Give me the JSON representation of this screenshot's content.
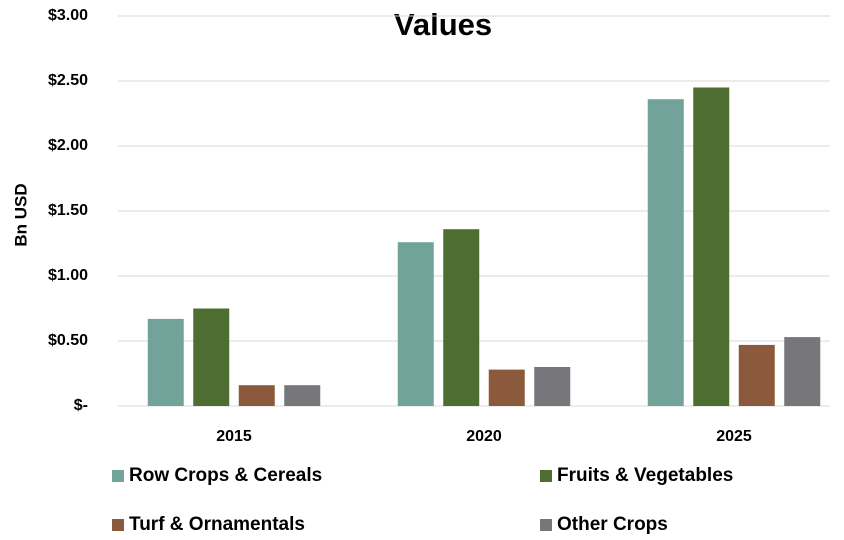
{
  "chart_data": {
    "type": "bar",
    "title": "Values",
    "y_axis_label": "Bn USD",
    "categories": [
      "2015",
      "2020",
      "2025"
    ],
    "series": [
      {
        "name": "Row Crops & Cereals",
        "color": "#72a39b",
        "values": [
          0.67,
          1.26,
          2.36
        ]
      },
      {
        "name": "Fruits & Vegetables",
        "color": "#4e6e31",
        "values": [
          0.75,
          1.36,
          2.45
        ]
      },
      {
        "name": "Turf & Ornamentals",
        "color": "#8b5a3c",
        "values": [
          0.16,
          0.28,
          0.47
        ]
      },
      {
        "name": "Other Crops",
        "color": "#77767a",
        "values": [
          0.16,
          0.3,
          0.53
        ]
      }
    ],
    "ylim": [
      0,
      3
    ],
    "yticks": [
      {
        "value": 0,
        "label": "$-"
      },
      {
        "value": 0.5,
        "label": "$0.50"
      },
      {
        "value": 1,
        "label": "$1.00"
      },
      {
        "value": 1.5,
        "label": "$1.50"
      },
      {
        "value": 2,
        "label": "$2.00"
      },
      {
        "value": 2.5,
        "label": "$2.50"
      },
      {
        "value": 3,
        "label": "$3.00"
      }
    ],
    "grid": true,
    "legend": "bottom"
  }
}
